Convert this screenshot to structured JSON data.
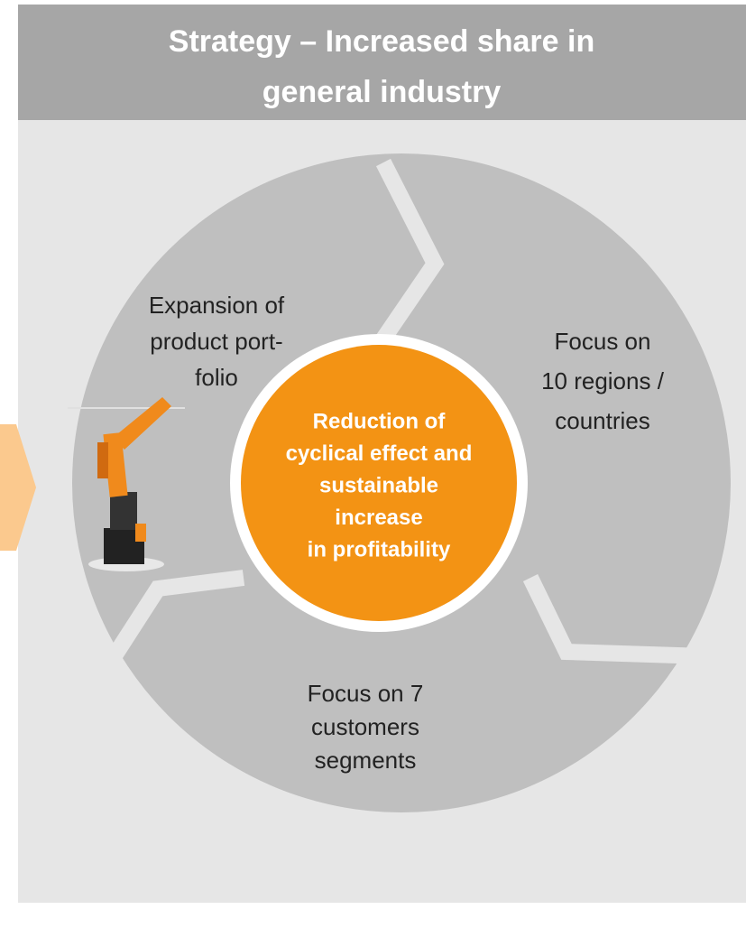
{
  "header": {
    "title": [
      "Strategy – Increased share in",
      "general industry"
    ]
  },
  "segments": [
    {
      "lines": [
        "Expansion of",
        "product port-",
        "folio"
      ]
    },
    {
      "lines": [
        "Focus on",
        "10 regions /",
        "countries"
      ]
    },
    {
      "lines": [
        "Focus on 7",
        "customers",
        "segments"
      ]
    }
  ],
  "center": {
    "lines": [
      "Reduction of",
      "cyclical effect and",
      "sustainable",
      "increase",
      "in profitability"
    ]
  }
}
